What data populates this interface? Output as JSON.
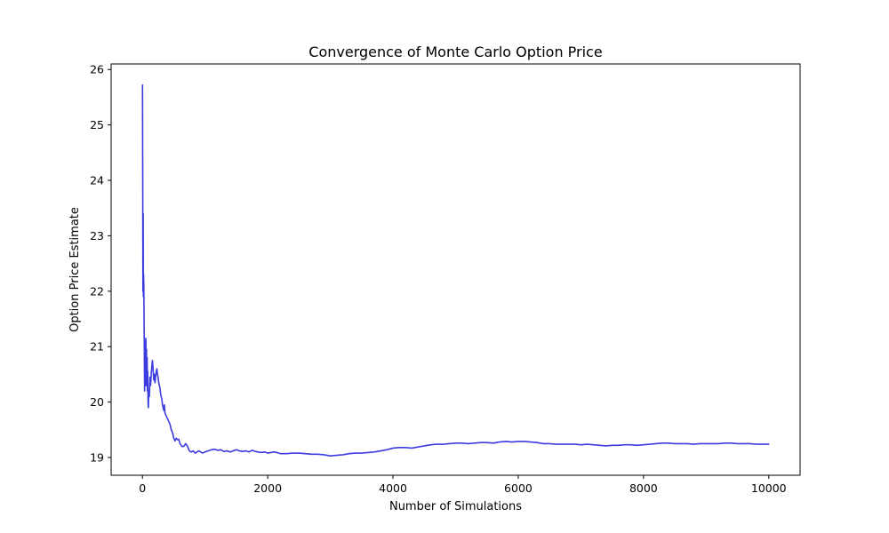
{
  "chart_data": {
    "type": "line",
    "title": "Convergence of Monte Carlo Option Price",
    "xlabel": "Number of Simulations",
    "ylabel": "Option Price Estimate",
    "xlim": [
      -500,
      10500
    ],
    "ylim": [
      18.68,
      26.1
    ],
    "xticks": [
      0,
      2000,
      4000,
      6000,
      8000,
      10000
    ],
    "yticks": [
      19,
      20,
      21,
      22,
      23,
      24,
      25,
      26
    ],
    "grid": false,
    "legend": "none",
    "series": [
      {
        "color": "#3b3be0",
        "x": [
          1,
          5,
          8,
          12,
          15,
          18,
          22,
          25,
          30,
          35,
          40,
          45,
          50,
          55,
          60,
          65,
          70,
          75,
          80,
          85,
          90,
          95,
          100,
          110,
          120,
          130,
          140,
          150,
          160,
          170,
          180,
          190,
          200,
          210,
          220,
          230,
          240,
          250,
          260,
          270,
          280,
          290,
          300,
          310,
          320,
          330,
          340,
          350,
          360,
          380,
          400,
          420,
          440,
          460,
          480,
          500,
          520,
          540,
          560,
          580,
          600,
          630,
          660,
          690,
          720,
          750,
          780,
          810,
          840,
          870,
          900,
          930,
          960,
          1000,
          1050,
          1100,
          1150,
          1200,
          1250,
          1300,
          1350,
          1400,
          1450,
          1500,
          1550,
          1600,
          1650,
          1700,
          1750,
          1800,
          1850,
          1900,
          1950,
          2000,
          2050,
          2100,
          2150,
          2200,
          2300,
          2400,
          2500,
          2600,
          2700,
          2800,
          2900,
          3000,
          3100,
          3200,
          3300,
          3400,
          3500,
          3600,
          3700,
          3800,
          3900,
          4000,
          4100,
          4200,
          4300,
          4400,
          4500,
          4600,
          4700,
          4800,
          4900,
          5000,
          5100,
          5200,
          5300,
          5400,
          5500,
          5600,
          5700,
          5800,
          5900,
          6000,
          6100,
          6200,
          6300,
          6400,
          6500,
          6600,
          6700,
          6800,
          6900,
          7000,
          7100,
          7200,
          7300,
          7400,
          7500,
          7600,
          7700,
          7800,
          7900,
          8000,
          8100,
          8200,
          8300,
          8400,
          8500,
          8600,
          8700,
          8800,
          8900,
          9000,
          9100,
          9200,
          9300,
          9400,
          9500,
          9600,
          9700,
          9800,
          9900,
          10000
        ],
        "y": [
          25.72,
          23.8,
          22.0,
          23.4,
          21.9,
          22.3,
          22.1,
          21.7,
          20.9,
          20.2,
          21.1,
          20.3,
          20.6,
          21.15,
          20.3,
          20.95,
          20.4,
          20.8,
          20.2,
          20.55,
          20.0,
          19.9,
          20.2,
          20.1,
          20.45,
          20.3,
          20.5,
          20.65,
          20.75,
          20.6,
          20.4,
          20.5,
          20.35,
          20.45,
          20.55,
          20.6,
          20.5,
          20.45,
          20.35,
          20.3,
          20.25,
          20.15,
          20.1,
          20.05,
          19.95,
          19.9,
          19.85,
          19.95,
          19.8,
          19.75,
          19.7,
          19.65,
          19.6,
          19.5,
          19.45,
          19.35,
          19.3,
          19.35,
          19.32,
          19.33,
          19.25,
          19.2,
          19.2,
          19.25,
          19.2,
          19.12,
          19.1,
          19.12,
          19.08,
          19.1,
          19.12,
          19.1,
          19.08,
          19.1,
          19.12,
          19.14,
          19.15,
          19.13,
          19.14,
          19.11,
          19.12,
          19.1,
          19.12,
          19.14,
          19.12,
          19.11,
          19.12,
          19.1,
          19.13,
          19.11,
          19.1,
          19.09,
          19.1,
          19.08,
          19.09,
          19.1,
          19.09,
          19.07,
          19.07,
          19.08,
          19.08,
          19.07,
          19.06,
          19.06,
          19.05,
          19.03,
          19.04,
          19.05,
          19.07,
          19.08,
          19.08,
          19.09,
          19.1,
          19.12,
          19.14,
          19.17,
          19.18,
          19.18,
          19.17,
          19.19,
          19.21,
          19.23,
          19.24,
          19.24,
          19.25,
          19.26,
          19.26,
          19.25,
          19.26,
          19.27,
          19.27,
          19.26,
          19.28,
          19.29,
          19.28,
          19.29,
          19.29,
          19.28,
          19.27,
          19.25,
          19.25,
          19.24,
          19.24,
          19.24,
          19.24,
          19.23,
          19.24,
          19.23,
          19.22,
          19.21,
          19.22,
          19.22,
          19.23,
          19.23,
          19.22,
          19.23,
          19.24,
          19.25,
          19.26,
          19.26,
          19.25,
          19.25,
          19.25,
          19.24,
          19.25,
          19.25,
          19.25,
          19.25,
          19.26,
          19.26,
          19.25,
          19.25,
          19.25,
          19.24,
          19.24,
          19.24
        ]
      }
    ]
  }
}
